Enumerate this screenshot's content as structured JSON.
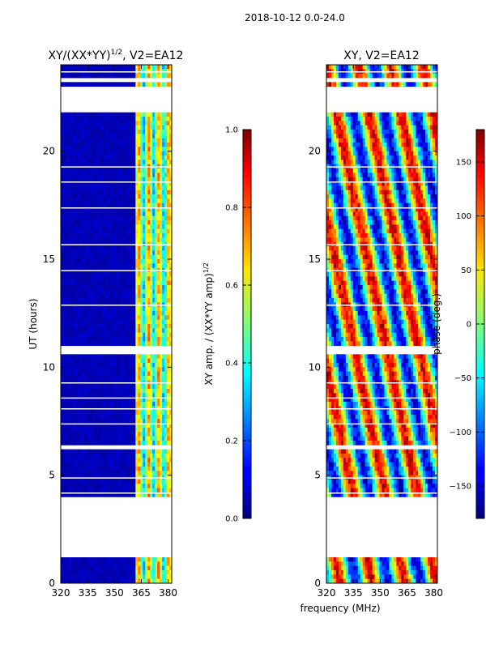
{
  "suptitle": "2018-10-12 0.0-24.0",
  "chart_data": [
    {
      "type": "heatmap",
      "title_prefix": "XY/(XX*YY)",
      "title_exponent": "1/2",
      "title_suffix": ", V2=EA12",
      "xlabel": "",
      "ylabel": "UT (hours)",
      "xlim": [
        320,
        382
      ],
      "ylim": [
        0,
        24
      ],
      "xticks": [
        320,
        335,
        350,
        365,
        380
      ],
      "yticks": [
        0,
        5,
        10,
        15,
        20
      ],
      "colorbar": {
        "label_prefix": "XY amp. / (XX*YY amp)",
        "label_exponent": "1/2",
        "range": [
          0.0,
          1.0
        ],
        "ticks": [
          "0.0",
          "0.2",
          "0.4",
          "0.6",
          "0.8",
          "1.0"
        ],
        "colormap": "jet"
      },
      "flagged_hour_ranges": [
        [
          1.15,
          3.95
        ],
        [
          6.2,
          6.35
        ],
        [
          10.6,
          11.0
        ],
        [
          21.9,
          22.95
        ],
        [
          23.2,
          23.4
        ]
      ],
      "active_freq_range_mhz": [
        362,
        382
      ],
      "typical_value_off_band": 0.05,
      "typical_value_active_band": 0.45
    },
    {
      "type": "heatmap",
      "title": "XY, V2=EA12",
      "xlabel": "frequency (MHz)",
      "ylabel": "",
      "xlim": [
        320,
        382
      ],
      "ylim": [
        0,
        24
      ],
      "xticks": [
        320,
        335,
        350,
        365,
        380
      ],
      "yticks": [
        0,
        5,
        10,
        15,
        20
      ],
      "colorbar": {
        "label": "phase (deg.)",
        "range": [
          -180,
          180
        ],
        "ticks": [
          "-150",
          "-100",
          "-50",
          "0",
          "50",
          "100",
          "150"
        ],
        "colormap": "jet"
      },
      "flagged_hour_ranges": [
        [
          1.15,
          3.95
        ],
        [
          6.2,
          6.35
        ],
        [
          10.6,
          11.0
        ],
        [
          21.9,
          22.95
        ],
        [
          23.2,
          23.4
        ]
      ]
    }
  ]
}
